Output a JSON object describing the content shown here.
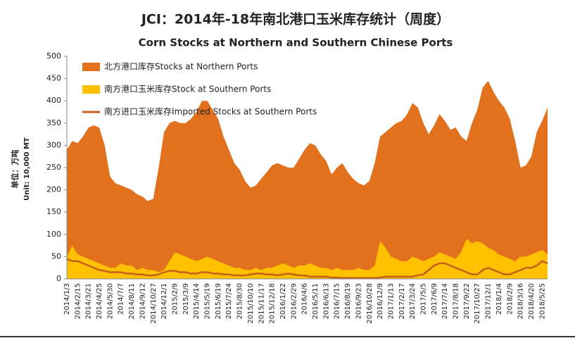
{
  "chart_data": {
    "type": "area",
    "title": "JCI：2014年-18年南北港口玉米库存统计（周度）",
    "subtitle": "Corn Stocks at Northern and Southern Chinese Ports",
    "ylabel": [
      "单位：万吨",
      "Unit: 10,000 MT"
    ],
    "categories": [
      "2014/1/3",
      null,
      "2014/2/15",
      null,
      "2014/3/21",
      null,
      "2014/4/25",
      null,
      "2014/5/30",
      null,
      "2014/7/7",
      null,
      "2014/8/11",
      null,
      "2014/9/12",
      null,
      "2014/10/27",
      null,
      "2014/12/1",
      null,
      "2015/2/9",
      null,
      "2015/3/9",
      null,
      "2015/4/14",
      null,
      "2015/5/19",
      null,
      "2015/6/19",
      null,
      "2015/7/24",
      null,
      "2015/8/30",
      null,
      "2015/10/10",
      null,
      "2015/11/17",
      null,
      "2015/12/18",
      null,
      "2016/1/22",
      null,
      "2016/2/29",
      null,
      "2016/4/6",
      null,
      "2016/5/11",
      null,
      "2016/6/13",
      null,
      "2016/7/15",
      null,
      "2016/8/19",
      null,
      "2016/9/23",
      null,
      "2016/10/28",
      null,
      "2016/12/9",
      null,
      "2017/1/13",
      null,
      "2017/2/17",
      null,
      "2017/3/24",
      null,
      "2017/5/5",
      null,
      "2017/6/9",
      null,
      "2017/7/14",
      null,
      "2017/8/18",
      null,
      "2017/9/22",
      null,
      "2017/10/27",
      null,
      "2017/12/1",
      null,
      "2018/1/4",
      null,
      "2018/2/9",
      null,
      "2018/3/16",
      null,
      "2018/4/20",
      null,
      "2018/5/25",
      null
    ],
    "series": [
      {
        "name": "北方港口库存Stocks at Northern Ports",
        "type": "area",
        "color": "#e2711d",
        "values": [
          290,
          310,
          305,
          320,
          340,
          345,
          340,
          300,
          230,
          215,
          210,
          205,
          200,
          190,
          185,
          175,
          180,
          250,
          330,
          350,
          355,
          350,
          350,
          360,
          375,
          400,
          400,
          380,
          360,
          320,
          290,
          260,
          245,
          220,
          205,
          210,
          225,
          240,
          255,
          260,
          255,
          250,
          250,
          270,
          290,
          305,
          300,
          280,
          265,
          235,
          250,
          260,
          240,
          225,
          215,
          210,
          220,
          260,
          320,
          330,
          340,
          350,
          355,
          370,
          395,
          385,
          350,
          325,
          345,
          370,
          355,
          335,
          340,
          320,
          310,
          350,
          380,
          430,
          445,
          420,
          400,
          385,
          360,
          310,
          250,
          255,
          275,
          330,
          355,
          385
        ]
      },
      {
        "name": "南方港口玉米库存Stock at Southern Ports",
        "type": "area",
        "color": "#ffc000",
        "values": [
          50,
          75,
          55,
          50,
          45,
          40,
          35,
          30,
          25,
          25,
          35,
          30,
          30,
          20,
          25,
          20,
          20,
          15,
          20,
          40,
          60,
          55,
          50,
          45,
          40,
          45,
          50,
          45,
          40,
          35,
          30,
          25,
          25,
          20,
          20,
          25,
          20,
          25,
          25,
          30,
          35,
          30,
          25,
          30,
          30,
          35,
          30,
          25,
          25,
          20,
          25,
          20,
          20,
          20,
          25,
          20,
          20,
          30,
          85,
          70,
          50,
          45,
          40,
          40,
          50,
          45,
          40,
          45,
          50,
          60,
          55,
          50,
          45,
          60,
          90,
          80,
          85,
          80,
          70,
          65,
          55,
          50,
          45,
          40,
          50,
          50,
          55,
          60,
          65,
          55
        ]
      },
      {
        "name": "南方进口玉米库存Imported Stocks at Southern Ports",
        "type": "line",
        "color": "#c5601a",
        "values": [
          45,
          40,
          40,
          35,
          30,
          25,
          20,
          18,
          15,
          15,
          15,
          12,
          12,
          10,
          10,
          8,
          8,
          10,
          15,
          18,
          18,
          15,
          15,
          12,
          12,
          15,
          15,
          12,
          12,
          10,
          10,
          8,
          8,
          8,
          10,
          12,
          12,
          10,
          10,
          8,
          10,
          12,
          10,
          8,
          8,
          5,
          5,
          5,
          5,
          3,
          3,
          2,
          2,
          2,
          2,
          2,
          2,
          2,
          3,
          5,
          5,
          5,
          5,
          5,
          5,
          8,
          10,
          20,
          30,
          35,
          35,
          30,
          25,
          20,
          15,
          10,
          10,
          20,
          25,
          20,
          15,
          10,
          10,
          15,
          20,
          25,
          25,
          30,
          40,
          35
        ]
      }
    ],
    "ylim": [
      0,
      500
    ],
    "yticks": [
      0,
      50,
      100,
      150,
      200,
      250,
      300,
      350,
      400,
      450,
      500
    ],
    "grid": false
  }
}
